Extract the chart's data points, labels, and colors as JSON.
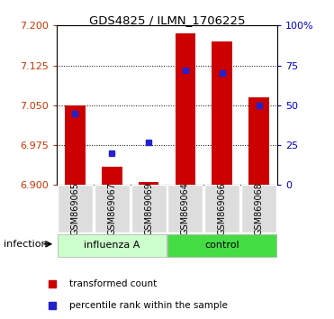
{
  "title": "GDS4825 / ILMN_1706225",
  "samples": [
    "GSM869065",
    "GSM869067",
    "GSM869069",
    "GSM869064",
    "GSM869066",
    "GSM869068"
  ],
  "group_labels": [
    "influenza A",
    "control"
  ],
  "bar_base": 6.9,
  "red_values": [
    7.05,
    6.935,
    6.905,
    7.185,
    7.17,
    7.065
  ],
  "blue_pct": [
    45,
    20,
    27,
    72,
    70,
    50
  ],
  "ylim_left": [
    6.9,
    7.2
  ],
  "ylim_right": [
    0,
    100
  ],
  "yticks_left": [
    6.9,
    6.975,
    7.05,
    7.125,
    7.2
  ],
  "yticks_right": [
    0,
    25,
    50,
    75,
    100
  ],
  "bar_color": "#cc0000",
  "dot_color": "#2222cc",
  "left_tick_color": "#cc3300",
  "right_tick_color": "#0000cc",
  "infection_label": "infection",
  "legend_items": [
    "transformed count",
    "percentile rank within the sample"
  ],
  "influenza_color": "#ccffcc",
  "control_color": "#44dd44"
}
